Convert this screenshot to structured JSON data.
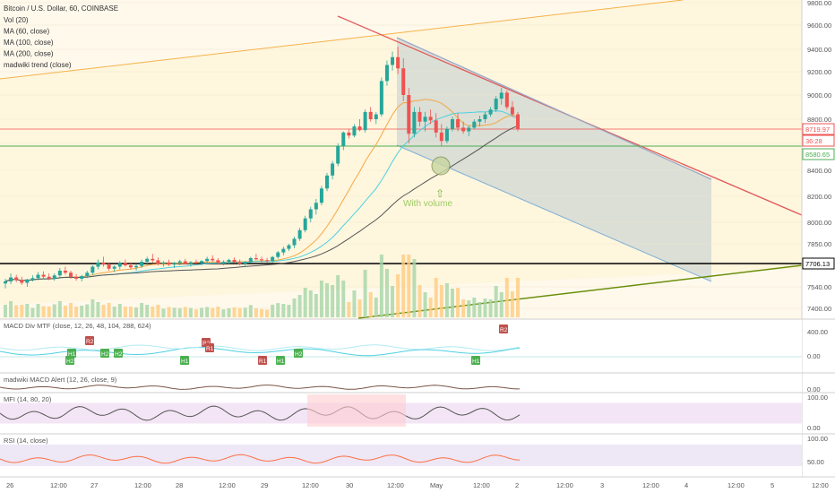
{
  "chart_data": {
    "type": "candlestick",
    "title": "Bitcoin / U.S. Dollar, 60, COINBASE",
    "indicators": [
      "Vol (20)",
      "MA (60, close)",
      "MA (100, close)",
      "MA (200, close)",
      "madwiki trend (close)"
    ],
    "price_axis": {
      "ticks": [
        9800,
        9600,
        9400,
        9200,
        9000,
        8800,
        8600,
        8400,
        8200,
        8000,
        7850,
        7700,
        7540,
        7400
      ],
      "tick_labels": [
        "9800.00",
        "9600.00",
        "9400.00",
        "9200.00",
        "9000.00",
        "8800.00",
        "8600.00",
        "8400.00",
        "8200.00",
        "8000.00",
        "7850.00",
        "7700.00",
        "7540.00",
        "7400.00"
      ]
    },
    "price_badges": [
      {
        "label": "8719.97",
        "color": "#ef5350"
      },
      {
        "label": "36:28",
        "color": "#ef5350"
      },
      {
        "label": "8580.65",
        "color": "#4caf50"
      },
      {
        "label": "7706.13",
        "color": "#000000"
      }
    ],
    "time_axis": {
      "labels": [
        "26",
        "12:00",
        "27",
        "12:00",
        "28",
        "12:00",
        "29",
        "12:00",
        "30",
        "12:00",
        "May",
        "12:00",
        "2",
        "12:00",
        "3",
        "12:00",
        "4",
        "12:00",
        "5",
        "12:00"
      ]
    },
    "annotation": "With volume",
    "ohlc": [
      [
        7565,
        7600,
        7530,
        7580
      ],
      [
        7580,
        7640,
        7560,
        7610
      ],
      [
        7610,
        7630,
        7575,
        7590
      ],
      [
        7590,
        7615,
        7555,
        7570
      ],
      [
        7570,
        7600,
        7540,
        7595
      ],
      [
        7595,
        7625,
        7580,
        7605
      ],
      [
        7605,
        7650,
        7590,
        7630
      ],
      [
        7630,
        7655,
        7600,
        7615
      ],
      [
        7615,
        7640,
        7590,
        7600
      ],
      [
        7600,
        7640,
        7585,
        7625
      ],
      [
        7625,
        7680,
        7610,
        7660
      ],
      [
        7660,
        7690,
        7630,
        7645
      ],
      [
        7645,
        7660,
        7600,
        7615
      ],
      [
        7615,
        7635,
        7585,
        7600
      ],
      [
        7600,
        7630,
        7580,
        7620
      ],
      [
        7620,
        7660,
        7605,
        7645
      ],
      [
        7645,
        7700,
        7630,
        7690
      ],
      [
        7690,
        7740,
        7670,
        7720
      ],
      [
        7720,
        7760,
        7690,
        7705
      ],
      [
        7705,
        7720,
        7660,
        7675
      ],
      [
        7675,
        7700,
        7650,
        7690
      ],
      [
        7690,
        7730,
        7670,
        7715
      ],
      [
        7715,
        7740,
        7690,
        7700
      ],
      [
        7700,
        7720,
        7670,
        7685
      ],
      [
        7685,
        7710,
        7660,
        7695
      ],
      [
        7695,
        7740,
        7680,
        7725
      ],
      [
        7725,
        7760,
        7700,
        7745
      ],
      [
        7745,
        7780,
        7720,
        7735
      ],
      [
        7735,
        7755,
        7700,
        7712
      ],
      [
        7712,
        7730,
        7690,
        7720
      ],
      [
        7720,
        7740,
        7695,
        7705
      ],
      [
        7705,
        7725,
        7680,
        7716
      ],
      [
        7716,
        7738,
        7700,
        7728
      ],
      [
        7728,
        7745,
        7705,
        7710
      ],
      [
        7710,
        7730,
        7690,
        7722
      ],
      [
        7722,
        7740,
        7705,
        7715
      ],
      [
        7715,
        7735,
        7700,
        7730
      ],
      [
        7730,
        7760,
        7715,
        7745
      ],
      [
        7745,
        7770,
        7725,
        7735
      ],
      [
        7735,
        7750,
        7705,
        7718
      ],
      [
        7718,
        7735,
        7700,
        7725
      ],
      [
        7725,
        7745,
        7710,
        7738
      ],
      [
        7738,
        7755,
        7715,
        7722
      ],
      [
        7722,
        7740,
        7700,
        7710
      ],
      [
        7710,
        7730,
        7690,
        7724
      ],
      [
        7724,
        7760,
        7715,
        7750
      ],
      [
        7750,
        7780,
        7735,
        7742
      ],
      [
        7742,
        7760,
        7720,
        7736
      ],
      [
        7736,
        7752,
        7718,
        7730
      ],
      [
        7730,
        7765,
        7720,
        7758
      ],
      [
        7758,
        7800,
        7745,
        7790
      ],
      [
        7790,
        7830,
        7770,
        7815
      ],
      [
        7815,
        7850,
        7800,
        7840
      ],
      [
        7840,
        7900,
        7820,
        7885
      ],
      [
        7885,
        7960,
        7870,
        7945
      ],
      [
        7945,
        8050,
        7930,
        8030
      ],
      [
        8030,
        8120,
        8000,
        8100
      ],
      [
        8100,
        8180,
        8060,
        8150
      ],
      [
        8150,
        8280,
        8130,
        8260
      ],
      [
        8260,
        8380,
        8240,
        8360
      ],
      [
        8360,
        8470,
        8330,
        8450
      ],
      [
        8450,
        8600,
        8430,
        8580
      ],
      [
        8580,
        8700,
        8550,
        8690
      ],
      [
        8690,
        8720,
        8640,
        8665
      ],
      [
        8665,
        8760,
        8650,
        8740
      ],
      [
        8740,
        8800,
        8700,
        8710
      ],
      [
        8710,
        8880,
        8690,
        8860
      ],
      [
        8860,
        8900,
        8780,
        8800
      ],
      [
        8800,
        8860,
        8760,
        8840
      ],
      [
        8840,
        9150,
        8820,
        9120
      ],
      [
        9120,
        9300,
        9080,
        9260
      ],
      [
        9260,
        9380,
        9210,
        9330
      ],
      [
        9330,
        9420,
        9180,
        9230
      ],
      [
        9230,
        9320,
        8950,
        9000
      ],
      [
        9000,
        9060,
        8600,
        8680
      ],
      [
        8680,
        8900,
        8650,
        8860
      ],
      [
        8860,
        8900,
        8740,
        8780
      ],
      [
        8780,
        8860,
        8700,
        8820
      ],
      [
        8820,
        8880,
        8760,
        8790
      ],
      [
        8790,
        8850,
        8650,
        8690
      ],
      [
        8690,
        8760,
        8580,
        8620
      ],
      [
        8620,
        8740,
        8600,
        8720
      ],
      [
        8720,
        8820,
        8700,
        8800
      ],
      [
        8800,
        8850,
        8700,
        8730
      ],
      [
        8730,
        8780,
        8680,
        8700
      ],
      [
        8700,
        8750,
        8660,
        8730
      ],
      [
        8730,
        8800,
        8720,
        8780
      ],
      [
        8780,
        8830,
        8740,
        8800
      ],
      [
        8800,
        8860,
        8770,
        8840
      ],
      [
        8840,
        8900,
        8820,
        8880
      ],
      [
        8880,
        8990,
        8860,
        8970
      ],
      [
        8970,
        9060,
        8920,
        9020
      ],
      [
        9020,
        9040,
        8880,
        8900
      ],
      [
        8900,
        8950,
        8820,
        8840
      ],
      [
        8840,
        8860,
        8700,
        8720
      ]
    ],
    "volume_pane": {
      "y_range": [
        0,
        1
      ]
    },
    "macd_pane": {
      "label": "MACD Div MTF (close, 12, 26, 48, 104, 288, 624)",
      "ticks": [
        "400.00",
        "0.00"
      ],
      "markers": [
        "H2",
        "H1",
        "H2",
        "H2",
        "R2",
        "H1",
        "R2",
        "R1",
        "R1",
        "H1",
        "H2",
        "H1",
        "R2"
      ]
    },
    "madwiki_pane": {
      "label": "madwiki MACD Alert (12, 26, close, 9)",
      "ticks": [
        "0.00"
      ]
    },
    "mfi_pane": {
      "label": "MFI (14, 80, 20)",
      "ticks": [
        "100.00",
        "0.00"
      ]
    },
    "rsi_pane": {
      "label": "RSI (14, close)",
      "ticks": [
        "100.00",
        "50.00"
      ]
    },
    "colors": {
      "up": "#26a69a",
      "down": "#ef5350",
      "ma60": "#f5a742",
      "ma100": "#4dd0e1",
      "ma200": "#555555",
      "trend": "#8bc34a"
    }
  }
}
